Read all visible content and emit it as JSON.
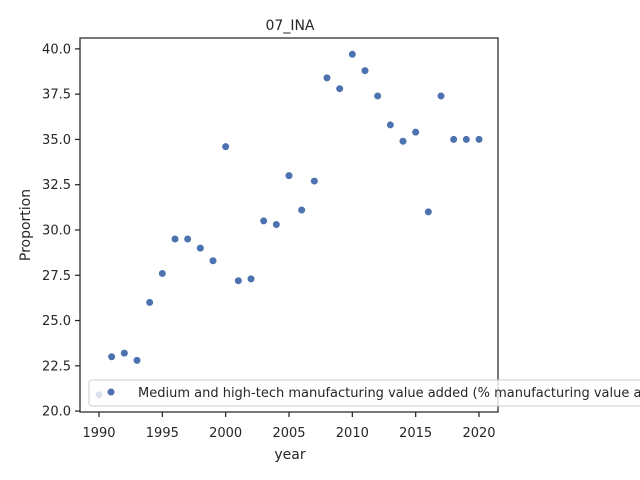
{
  "chart_data": {
    "type": "scatter",
    "title": "07_INA",
    "xlabel": "year",
    "ylabel": "Proportion",
    "xlim": [
      1988.5,
      2021.5
    ],
    "ylim": [
      19.95,
      40.6
    ],
    "xticks": [
      1990,
      1995,
      2000,
      2005,
      2010,
      2015,
      2020
    ],
    "yticks": [
      20.0,
      22.5,
      25.0,
      27.5,
      30.0,
      32.5,
      35.0,
      37.5,
      40.0
    ],
    "grid": false,
    "legend_position": "lower-left",
    "series": [
      {
        "name": "Medium and high-tech manufacturing value added (% manufacturing value added)",
        "color": "#4c72b0",
        "x": [
          1990,
          1991,
          1992,
          1993,
          1994,
          1995,
          1996,
          1997,
          1998,
          1999,
          2000,
          2001,
          2002,
          2003,
          2004,
          2005,
          2006,
          2007,
          2008,
          2009,
          2010,
          2011,
          2012,
          2013,
          2014,
          2015,
          2016,
          2017,
          2018,
          2019,
          2020
        ],
        "y": [
          20.9,
          23.0,
          23.2,
          22.8,
          26.0,
          27.6,
          29.5,
          29.5,
          29.0,
          28.3,
          34.6,
          27.2,
          27.3,
          30.5,
          30.3,
          33.0,
          31.1,
          32.7,
          38.4,
          37.8,
          39.7,
          38.8,
          37.4,
          35.8,
          34.9,
          35.4,
          31.0,
          37.4,
          35.0,
          35.0,
          35.0
        ]
      }
    ]
  }
}
